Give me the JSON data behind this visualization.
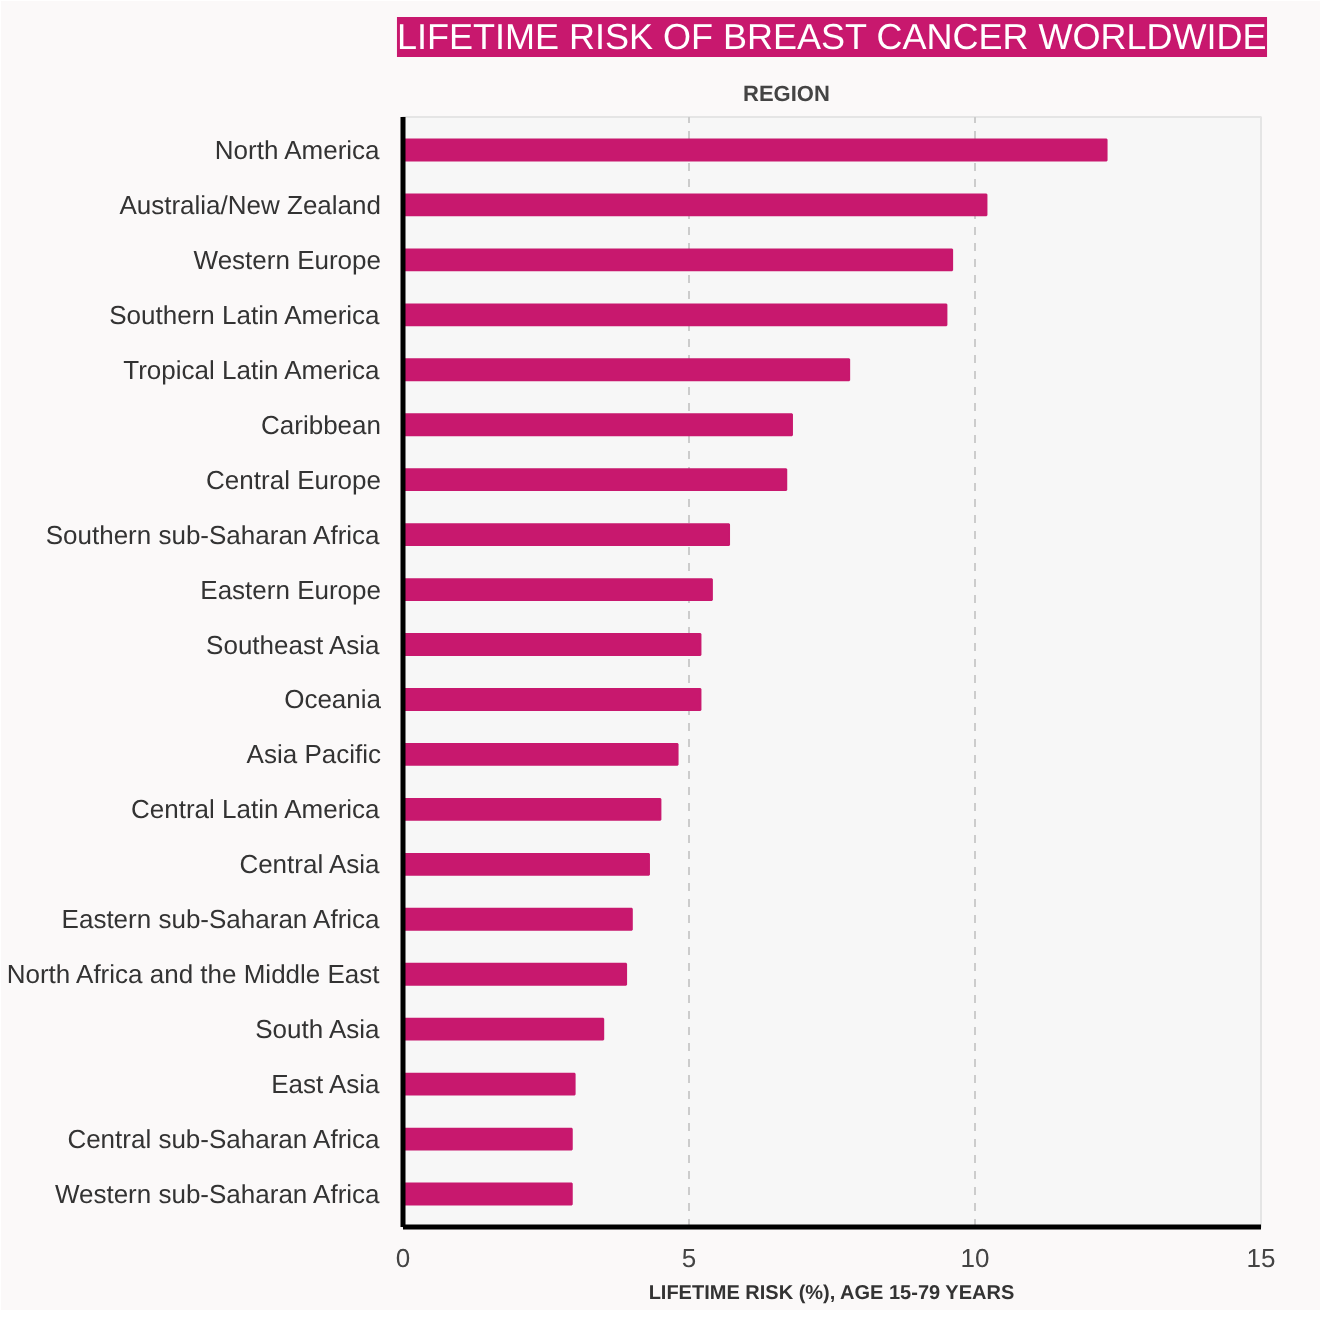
{
  "chart_data": {
    "type": "bar",
    "orientation": "horizontal",
    "title": "LIFETIME RISK OF BREAST CANCER WORLDWIDE",
    "ylabel": "REGION",
    "xlabel": "LIFETIME RISK (%), AGE 15-79 YEARS",
    "categories": [
      "North America",
      "Australia/New Zealand",
      "Western Europe",
      "Southern Latin America",
      "Tropical Latin America",
      "Caribbean",
      "Central Europe",
      "Southern sub-Saharan Africa",
      "Eastern Europe",
      "Southeast Asia",
      "Oceania",
      "Asia Pacific",
      "Central Latin America",
      "Central Asia",
      "Eastern sub-Saharan Africa",
      "North Africa and the Middle East",
      "South Asia",
      "East Asia",
      "Central sub-Saharan Africa",
      "Western sub-Saharan Africa"
    ],
    "values": [
      12.3,
      10.2,
      9.6,
      9.5,
      7.8,
      6.8,
      6.7,
      5.7,
      5.4,
      5.2,
      5.2,
      4.8,
      4.5,
      4.3,
      4.0,
      3.9,
      3.5,
      3.0,
      2.95,
      2.95
    ],
    "color": "#c8186e",
    "xlim": [
      0,
      15
    ],
    "xticks": [
      0,
      5,
      10,
      15
    ],
    "grid": "x"
  }
}
